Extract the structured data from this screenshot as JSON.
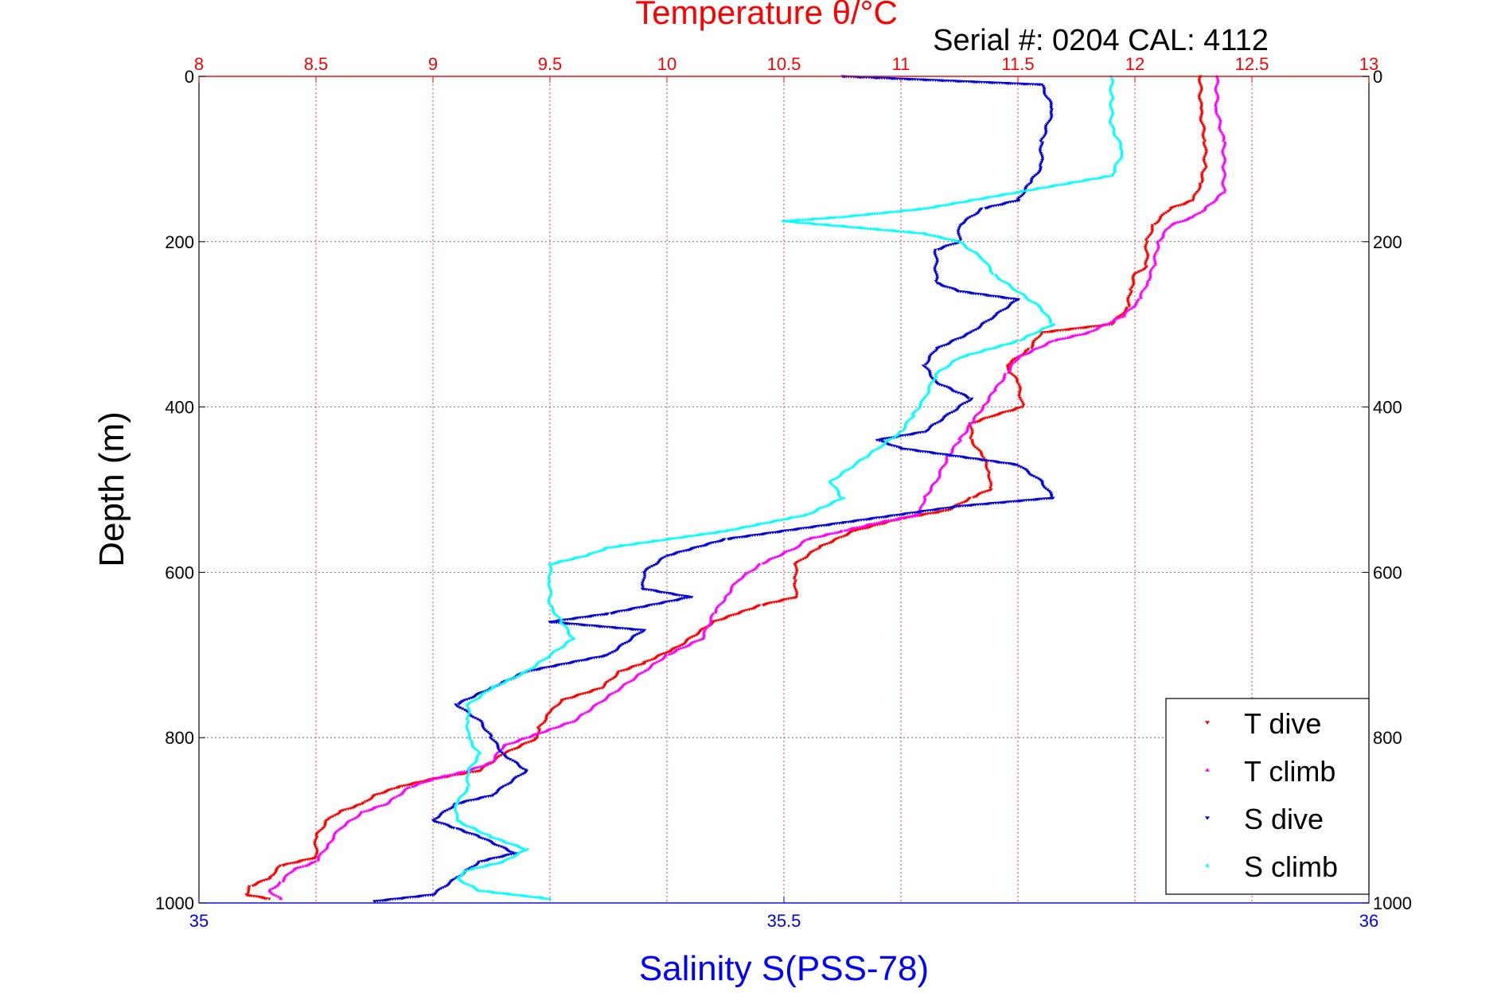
{
  "colors": {
    "temperature": "#ff0000",
    "salinity": "#0000ff",
    "t_dive": "#ff0000",
    "t_climb": "#ff00ff",
    "s_dive": "#0000dd",
    "s_climb": "#00ffff",
    "axis": "#000000"
  },
  "chart_data": {
    "type": "scatter",
    "title": "Temperature θ/°C",
    "subtitle": "Serial #: 0204  CAL: 4112",
    "ylabel": "Depth (m)",
    "xlabel": "Salinity S(PSS-78)",
    "ylim": [
      0,
      1000
    ],
    "y_inverted": true,
    "temperature_axis": {
      "position": "top",
      "range": [
        8,
        13
      ],
      "ticks": [
        "8",
        "8.5",
        "9",
        "9.5",
        "10",
        "10.5",
        "11",
        "11.5",
        "12",
        "12.5",
        "13"
      ]
    },
    "salinity_axis": {
      "position": "bottom",
      "range": [
        35,
        36
      ],
      "ticks": [
        "35",
        "35.5",
        "36"
      ]
    },
    "depth_ticks": [
      "0",
      "200",
      "400",
      "600",
      "800",
      "1000"
    ],
    "grid": true,
    "legend_placement": "bottom-right",
    "series": [
      {
        "name": "T dive",
        "axis": "temperature",
        "marker": "triangle-down",
        "points": [
          [
            12.28,
            0
          ],
          [
            12.28,
            40
          ],
          [
            12.3,
            80
          ],
          [
            12.3,
            110
          ],
          [
            12.28,
            130
          ],
          [
            12.25,
            150
          ],
          [
            12.15,
            160
          ],
          [
            12.08,
            180
          ],
          [
            12.05,
            200
          ],
          [
            12.05,
            230
          ],
          [
            12.0,
            240
          ],
          [
            11.98,
            260
          ],
          [
            11.97,
            280
          ],
          [
            11.9,
            300
          ],
          [
            11.6,
            310
          ],
          [
            11.55,
            330
          ],
          [
            11.45,
            350
          ],
          [
            11.5,
            370
          ],
          [
            11.52,
            400
          ],
          [
            11.4,
            410
          ],
          [
            11.3,
            420
          ],
          [
            11.3,
            440
          ],
          [
            11.35,
            460
          ],
          [
            11.38,
            480
          ],
          [
            11.38,
            500
          ],
          [
            11.3,
            510
          ],
          [
            11.2,
            525
          ],
          [
            11.0,
            535
          ],
          [
            10.8,
            550
          ],
          [
            10.65,
            570
          ],
          [
            10.55,
            590
          ],
          [
            10.55,
            610
          ],
          [
            10.55,
            630
          ],
          [
            10.4,
            640
          ],
          [
            10.3,
            650
          ],
          [
            10.2,
            660
          ],
          [
            10.05,
            690
          ],
          [
            9.9,
            710
          ],
          [
            9.8,
            720
          ],
          [
            9.72,
            740
          ],
          [
            9.55,
            755
          ],
          [
            9.5,
            770
          ],
          [
            9.45,
            790
          ],
          [
            9.45,
            800
          ],
          [
            9.3,
            820
          ],
          [
            9.2,
            840
          ],
          [
            9.0,
            850
          ],
          [
            8.85,
            860
          ],
          [
            8.75,
            870
          ],
          [
            8.7,
            880
          ],
          [
            8.6,
            890
          ],
          [
            8.55,
            900
          ],
          [
            8.5,
            920
          ],
          [
            8.5,
            945
          ],
          [
            8.35,
            955
          ],
          [
            8.3,
            970
          ],
          [
            8.22,
            980
          ],
          [
            8.2,
            990
          ],
          [
            8.3,
            995
          ]
        ]
      },
      {
        "name": "T climb",
        "axis": "temperature",
        "marker": "triangle-up",
        "points": [
          [
            12.35,
            0
          ],
          [
            12.35,
            40
          ],
          [
            12.38,
            80
          ],
          [
            12.38,
            110
          ],
          [
            12.38,
            140
          ],
          [
            12.3,
            160
          ],
          [
            12.25,
            170
          ],
          [
            12.15,
            180
          ],
          [
            12.1,
            200
          ],
          [
            12.08,
            230
          ],
          [
            12.05,
            250
          ],
          [
            12.02,
            270
          ],
          [
            11.95,
            290
          ],
          [
            11.8,
            310
          ],
          [
            11.65,
            320
          ],
          [
            11.5,
            340
          ],
          [
            11.45,
            360
          ],
          [
            11.4,
            380
          ],
          [
            11.35,
            400
          ],
          [
            11.3,
            420
          ],
          [
            11.25,
            440
          ],
          [
            11.2,
            460
          ],
          [
            11.15,
            490
          ],
          [
            11.1,
            510
          ],
          [
            11.08,
            530
          ],
          [
            10.9,
            540
          ],
          [
            10.75,
            550
          ],
          [
            10.6,
            560
          ],
          [
            10.55,
            570
          ],
          [
            10.4,
            590
          ],
          [
            10.3,
            610
          ],
          [
            10.25,
            630
          ],
          [
            10.2,
            650
          ],
          [
            10.15,
            680
          ],
          [
            10.0,
            700
          ],
          [
            9.9,
            720
          ],
          [
            9.8,
            740
          ],
          [
            9.7,
            760
          ],
          [
            9.6,
            780
          ],
          [
            9.5,
            790
          ],
          [
            9.4,
            800
          ],
          [
            9.3,
            810
          ],
          [
            9.25,
            830
          ],
          [
            9.15,
            840
          ],
          [
            9.0,
            850
          ],
          [
            8.9,
            860
          ],
          [
            8.8,
            880
          ],
          [
            8.7,
            890
          ],
          [
            8.6,
            910
          ],
          [
            8.55,
            930
          ],
          [
            8.5,
            950
          ],
          [
            8.4,
            960
          ],
          [
            8.35,
            975
          ],
          [
            8.3,
            985
          ],
          [
            8.35,
            995
          ]
        ]
      },
      {
        "name": "S dive",
        "axis": "salinity",
        "marker": "triangle-down",
        "points": [
          [
            35.55,
            0
          ],
          [
            35.72,
            10
          ],
          [
            35.73,
            40
          ],
          [
            35.72,
            80
          ],
          [
            35.72,
            110
          ],
          [
            35.71,
            130
          ],
          [
            35.7,
            150
          ],
          [
            35.67,
            160
          ],
          [
            35.65,
            180
          ],
          [
            35.65,
            200
          ],
          [
            35.63,
            210
          ],
          [
            35.63,
            250
          ],
          [
            35.65,
            260
          ],
          [
            35.7,
            270
          ],
          [
            35.68,
            290
          ],
          [
            35.66,
            310
          ],
          [
            35.63,
            330
          ],
          [
            35.62,
            350
          ],
          [
            35.63,
            370
          ],
          [
            35.66,
            390
          ],
          [
            35.64,
            410
          ],
          [
            35.62,
            430
          ],
          [
            35.58,
            440
          ],
          [
            35.6,
            450
          ],
          [
            35.65,
            460
          ],
          [
            35.7,
            470
          ],
          [
            35.72,
            490
          ],
          [
            35.73,
            510
          ],
          [
            35.65,
            520
          ],
          [
            35.55,
            540
          ],
          [
            35.45,
            560
          ],
          [
            35.4,
            580
          ],
          [
            35.38,
            600
          ],
          [
            35.38,
            620
          ],
          [
            35.42,
            630
          ],
          [
            35.35,
            650
          ],
          [
            35.3,
            660
          ],
          [
            35.38,
            670
          ],
          [
            35.35,
            700
          ],
          [
            35.28,
            720
          ],
          [
            35.25,
            740
          ],
          [
            35.22,
            760
          ],
          [
            35.24,
            780
          ],
          [
            35.25,
            800
          ],
          [
            35.26,
            820
          ],
          [
            35.28,
            840
          ],
          [
            35.26,
            860
          ],
          [
            35.25,
            870
          ],
          [
            35.22,
            880
          ],
          [
            35.2,
            900
          ],
          [
            35.22,
            910
          ],
          [
            35.24,
            920
          ],
          [
            35.27,
            940
          ],
          [
            35.24,
            950
          ],
          [
            35.22,
            970
          ],
          [
            35.2,
            990
          ],
          [
            35.15,
            998
          ]
        ]
      },
      {
        "name": "S climb",
        "axis": "salinity",
        "marker": "triangle-up",
        "points": [
          [
            35.78,
            0
          ],
          [
            35.78,
            30
          ],
          [
            35.78,
            60
          ],
          [
            35.79,
            90
          ],
          [
            35.78,
            120
          ],
          [
            35.7,
            140
          ],
          [
            35.62,
            160
          ],
          [
            35.55,
            170
          ],
          [
            35.5,
            175
          ],
          [
            35.62,
            190
          ],
          [
            35.65,
            200
          ],
          [
            35.67,
            220
          ],
          [
            35.68,
            240
          ],
          [
            35.7,
            260
          ],
          [
            35.72,
            280
          ],
          [
            35.73,
            300
          ],
          [
            35.7,
            320
          ],
          [
            35.65,
            340
          ],
          [
            35.63,
            360
          ],
          [
            35.62,
            390
          ],
          [
            35.61,
            410
          ],
          [
            35.6,
            430
          ],
          [
            35.58,
            450
          ],
          [
            35.56,
            470
          ],
          [
            35.54,
            490
          ],
          [
            35.55,
            510
          ],
          [
            35.52,
            530
          ],
          [
            35.45,
            550
          ],
          [
            35.4,
            560
          ],
          [
            35.35,
            570
          ],
          [
            35.33,
            580
          ],
          [
            35.3,
            590
          ],
          [
            35.3,
            610
          ],
          [
            35.3,
            640
          ],
          [
            35.31,
            660
          ],
          [
            35.32,
            680
          ],
          [
            35.3,
            700
          ],
          [
            35.28,
            720
          ],
          [
            35.25,
            740
          ],
          [
            35.23,
            760
          ],
          [
            35.23,
            780
          ],
          [
            35.23,
            800
          ],
          [
            35.24,
            820
          ],
          [
            35.23,
            840
          ],
          [
            35.23,
            860
          ],
          [
            35.22,
            880
          ],
          [
            35.22,
            900
          ],
          [
            35.25,
            920
          ],
          [
            35.28,
            935
          ],
          [
            35.26,
            950
          ],
          [
            35.23,
            960
          ],
          [
            35.22,
            970
          ],
          [
            35.24,
            985
          ],
          [
            35.3,
            995
          ]
        ]
      }
    ]
  }
}
